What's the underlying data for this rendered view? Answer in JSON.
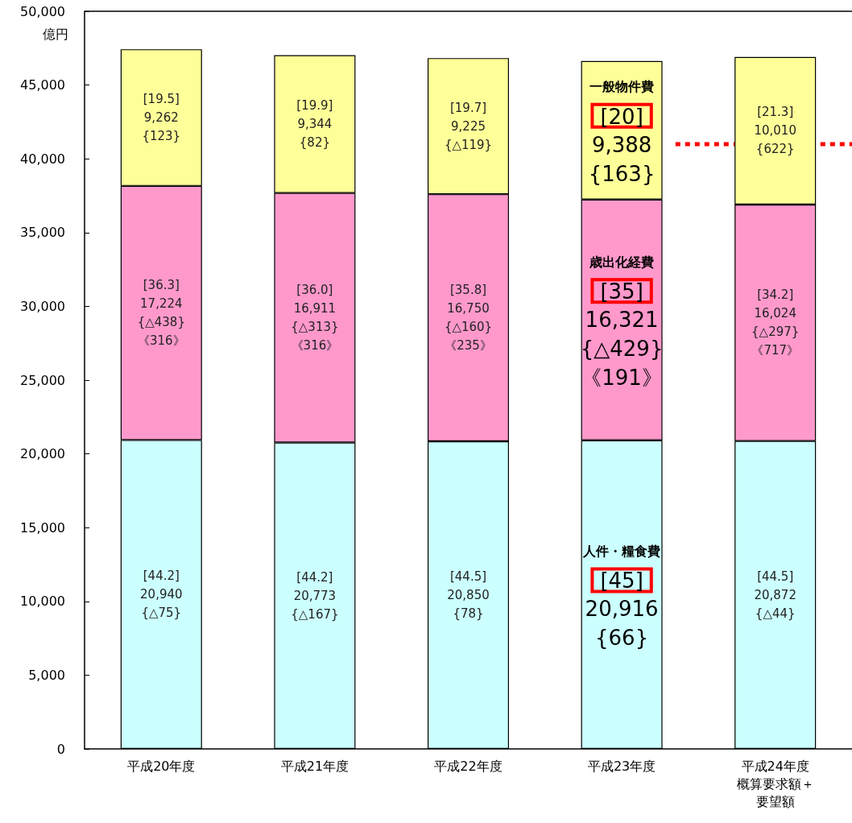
{
  "chart_data": {
    "type": "bar",
    "stacked": true,
    "ylabel": "億円",
    "categories": [
      "平成20年度",
      "平成21年度",
      "平成22年度",
      "平成23年度",
      "平成24年度概算要求額＋要望額"
    ],
    "series": [
      {
        "name": "人件・糧食費",
        "color": "#ccffff",
        "values": [
          20940,
          20773,
          20850,
          20916,
          20872
        ],
        "value_labels": [
          "[44.2]\n20,940\n{△75}",
          "[44.2]\n20,773\n{△167}",
          "[44.5]\n20,850\n{78}",
          "[45]\n20,916\n{66}",
          "[44.5]\n20,872\n{△44}"
        ]
      },
      {
        "name": "歳出化経費",
        "color": "#ff99cc",
        "values": [
          17224,
          16911,
          16750,
          16321,
          16024
        ],
        "value_labels": [
          "[36.3]\n17,224\n{△438}\n《316》",
          "[36.0]\n16,911\n{△313}\n《316》",
          "[35.8]\n16,750\n{△160}\n《235》",
          "[35]\n16,321\n{△429}\n《191》",
          "[34.2]\n16,024\n{△297}\n《717》"
        ]
      },
      {
        "name": "一般物件費",
        "color": "#ffff99",
        "values": [
          9262,
          9344,
          9225,
          9388,
          10010
        ],
        "value_labels": [
          "[19.5]\n9,262\n{123}",
          "[19.9]\n9,344\n{82}",
          "[19.7]\n9,225\n{△119}",
          "[20]\n9,388\n{163}",
          "[21.3]\n10,010\n{622}"
        ]
      }
    ],
    "ylim": [
      0,
      50000
    ],
    "yticks": [
      {
        "value": 0,
        "label": "0"
      },
      {
        "value": 5000,
        "label": "5,000"
      },
      {
        "value": 10000,
        "label": "10,000"
      },
      {
        "value": 15000,
        "label": "15,000"
      },
      {
        "value": 20000,
        "label": "20,000"
      },
      {
        "value": 25000,
        "label": "25,000"
      },
      {
        "value": 30000,
        "label": "30,000"
      },
      {
        "value": 35000,
        "label": "35,000"
      },
      {
        "value": 40000,
        "label": "40,000"
      },
      {
        "value": 45000,
        "label": "45,000"
      },
      {
        "value": 50000,
        "label": "50,000"
      }
    ],
    "ref_lines": [
      {
        "axis": "y",
        "value": 41000,
        "color": "#ff0000",
        "line_style": "dotted"
      }
    ],
    "grid": false,
    "legend": false
  }
}
